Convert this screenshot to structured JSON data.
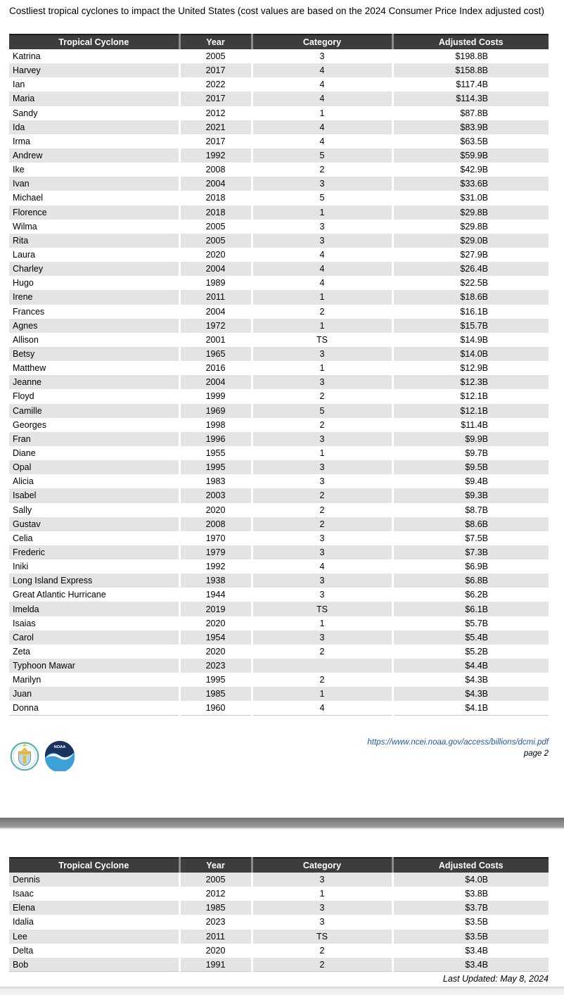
{
  "document": {
    "title": "Costliest tropical cyclones to impact the United States (cost values are based on the 2024 Consumer Price Index adjusted cost)"
  },
  "columns": [
    "Tropical Cyclone",
    "Year",
    "Category",
    "Adjusted Costs"
  ],
  "table1": {
    "rows": [
      [
        "Katrina",
        "2005",
        "3",
        "$198.8B"
      ],
      [
        "Harvey",
        "2017",
        "4",
        "$158.8B"
      ],
      [
        "Ian",
        "2022",
        "4",
        "$117.4B"
      ],
      [
        "Maria",
        "2017",
        "4",
        "$114.3B"
      ],
      [
        "Sandy",
        "2012",
        "1",
        "$87.8B"
      ],
      [
        "Ida",
        "2021",
        "4",
        "$83.9B"
      ],
      [
        "Irma",
        "2017",
        "4",
        "$63.5B"
      ],
      [
        "Andrew",
        "1992",
        "5",
        "$59.9B"
      ],
      [
        "Ike",
        "2008",
        "2",
        "$42.9B"
      ],
      [
        "Ivan",
        "2004",
        "3",
        "$33.6B"
      ],
      [
        "Michael",
        "2018",
        "5",
        "$31.0B"
      ],
      [
        "Florence",
        "2018",
        "1",
        "$29.8B"
      ],
      [
        "Wilma",
        "2005",
        "3",
        "$29.8B"
      ],
      [
        "Rita",
        "2005",
        "3",
        "$29.0B"
      ],
      [
        "Laura",
        "2020",
        "4",
        "$27.9B"
      ],
      [
        "Charley",
        "2004",
        "4",
        "$26.4B"
      ],
      [
        "Hugo",
        "1989",
        "4",
        "$22.5B"
      ],
      [
        "Irene",
        "2011",
        "1",
        "$18.6B"
      ],
      [
        "Frances",
        "2004",
        "2",
        "$16.1B"
      ],
      [
        "Agnes",
        "1972",
        "1",
        "$15.7B"
      ],
      [
        "Allison",
        "2001",
        "TS",
        "$14.9B"
      ],
      [
        "Betsy",
        "1965",
        "3",
        "$14.0B"
      ],
      [
        "Matthew",
        "2016",
        "1",
        "$12.9B"
      ],
      [
        "Jeanne",
        "2004",
        "3",
        "$12.3B"
      ],
      [
        "Floyd",
        "1999",
        "2",
        "$12.1B"
      ],
      [
        "Camille",
        "1969",
        "5",
        "$12.1B"
      ],
      [
        "Georges",
        "1998",
        "2",
        "$11.4B"
      ],
      [
        "Fran",
        "1996",
        "3",
        "$9.9B"
      ],
      [
        "Diane",
        "1955",
        "1",
        "$9.7B"
      ],
      [
        "Opal",
        "1995",
        "3",
        "$9.5B"
      ],
      [
        "Alicia",
        "1983",
        "3",
        "$9.4B"
      ],
      [
        "Isabel",
        "2003",
        "2",
        "$9.3B"
      ],
      [
        "Sally",
        "2020",
        "2",
        "$8.7B"
      ],
      [
        "Gustav",
        "2008",
        "2",
        "$8.6B"
      ],
      [
        "Celia",
        "1970",
        "3",
        "$7.5B"
      ],
      [
        "Frederic",
        "1979",
        "3",
        "$7.3B"
      ],
      [
        "Iniki",
        "1992",
        "4",
        "$6.9B"
      ],
      [
        "Long Island Express",
        "1938",
        "3",
        "$6.8B"
      ],
      [
        "Great Atlantic Hurricane",
        "1944",
        "3",
        "$6.2B"
      ],
      [
        "Imelda",
        "2019",
        "TS",
        "$6.1B"
      ],
      [
        "Isaias",
        "2020",
        "1",
        "$5.7B"
      ],
      [
        "Carol",
        "1954",
        "3",
        "$5.4B"
      ],
      [
        "Zeta",
        "2020",
        "2",
        "$5.2B"
      ],
      [
        "Typhoon Mawar",
        "2023",
        "",
        "$4.4B"
      ],
      [
        "Marilyn",
        "1995",
        "2",
        "$4.3B"
      ],
      [
        "Juan",
        "1985",
        "1",
        "$4.3B"
      ],
      [
        "Donna",
        "1960",
        "4",
        "$4.1B"
      ]
    ]
  },
  "table2": {
    "rows": [
      [
        "Dennis",
        "2005",
        "3",
        "$4.0B"
      ],
      [
        "Isaac",
        "2012",
        "1",
        "$3.8B"
      ],
      [
        "Elena",
        "1985",
        "3",
        "$3.7B"
      ],
      [
        "Idalia",
        "2023",
        "3",
        "$3.5B"
      ],
      [
        "Lee",
        "2011",
        "TS",
        "$3.5B"
      ],
      [
        "Delta",
        "2020",
        "2",
        "$3.4B"
      ],
      [
        "Bob",
        "1991",
        "2",
        "$3.4B"
      ]
    ]
  },
  "footer": {
    "url": "https://www.ncei.noaa.gov/access/billions/dcmi.pdf",
    "page_label": "page 2",
    "logos": [
      "department-of-commerce-seal",
      "noaa-logo"
    ],
    "last_updated": "Last Updated: May 8, 2024"
  },
  "colors": {
    "header_bg": "#3d3d3d",
    "header_text": "#ffffff",
    "row_shaded": "#e4e4e4",
    "link_blue": "#2456a8",
    "page_separator_gray": "#8c8c8c",
    "noaa_navy": "#1b3360",
    "noaa_light_blue": "#3da0d8",
    "doc_seal_teal": "#55b0a8",
    "doc_seal_gold": "#e8b83a"
  }
}
